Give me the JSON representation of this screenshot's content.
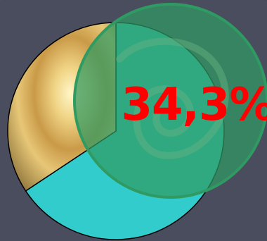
{
  "chart_data": {
    "type": "pie",
    "slices": [
      {
        "label": "",
        "value": 65.7,
        "color": "#33cccc"
      },
      {
        "label": "34,3%",
        "value": 34.3,
        "color": "#d9a860"
      }
    ],
    "data_label": "34,3%",
    "title": "",
    "legend": false
  },
  "colors": {
    "main_pie": "#33cccc",
    "highlight_overlay": "#2f9a62",
    "label": "#ff0000",
    "background": "#4a4d5e"
  }
}
